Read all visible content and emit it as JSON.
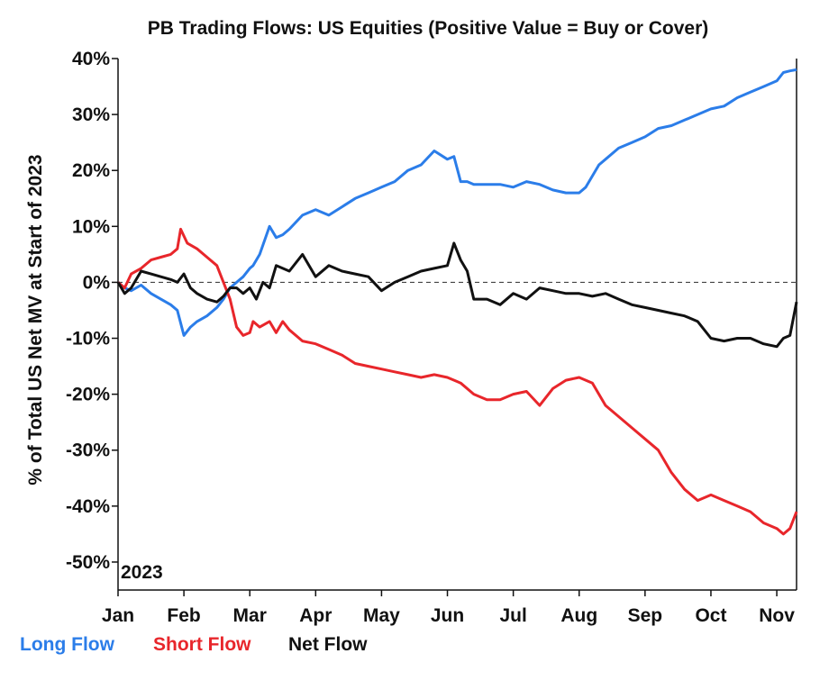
{
  "chart_data": {
    "type": "line",
    "title": "PB Trading Flows: US Equities (Positive Value = Buy or Cover)",
    "ylabel": "% of Total US Net MV at Start of 2023",
    "xlabel": "",
    "ylim": [
      -55,
      40
    ],
    "xlim": [
      0,
      10.3
    ],
    "yticks": [
      40,
      30,
      20,
      10,
      0,
      -10,
      -20,
      -30,
      -40,
      -50
    ],
    "ytick_labels": [
      "40%",
      "30%",
      "20%",
      "10%",
      "0%",
      "-10%",
      "-20%",
      "-30%",
      "-40%",
      "-50%"
    ],
    "xtick_labels": [
      "Jan",
      "Feb",
      "Mar",
      "Apr",
      "May",
      "Jun",
      "Jul",
      "Aug",
      "Sep",
      "Oct",
      "Nov"
    ],
    "annotation": "2023",
    "reference_line": 0,
    "legend_position": "bottom-left",
    "series": [
      {
        "name": "Long Flow",
        "color": "#2b7de9",
        "x": [
          0,
          0.1,
          0.2,
          0.35,
          0.5,
          0.65,
          0.8,
          0.9,
          1.0,
          1.1,
          1.2,
          1.35,
          1.5,
          1.6,
          1.7,
          1.8,
          1.9,
          2.0,
          2.05,
          2.15,
          2.3,
          2.4,
          2.5,
          2.6,
          2.8,
          3.0,
          3.2,
          3.4,
          3.6,
          3.8,
          4.0,
          4.2,
          4.4,
          4.6,
          4.8,
          5.0,
          5.1,
          5.2,
          5.3,
          5.4,
          5.5,
          5.65,
          5.8,
          6.0,
          6.2,
          6.4,
          6.6,
          6.8,
          7.0,
          7.1,
          7.2,
          7.3,
          7.4,
          7.6,
          7.8,
          8.0,
          8.2,
          8.4,
          8.6,
          8.8,
          9.0,
          9.2,
          9.4,
          9.6,
          9.8,
          10.0,
          10.1,
          10.2,
          10.3
        ],
        "values": [
          0,
          -1,
          -1.5,
          -0.5,
          -2,
          -3,
          -4,
          -5,
          -9.5,
          -8,
          -7,
          -6,
          -4.5,
          -3,
          -1,
          0,
          1,
          2.5,
          3,
          5,
          10,
          8,
          8.5,
          9.5,
          12,
          13,
          12,
          13.5,
          15,
          16,
          17,
          18,
          20,
          21,
          23.5,
          22,
          22.5,
          18,
          18,
          17.5,
          17.5,
          17.5,
          17.5,
          17,
          18,
          17.5,
          16.5,
          16,
          16,
          17,
          19,
          21,
          22,
          24,
          25,
          26,
          27.5,
          28,
          29,
          30,
          31,
          31.5,
          33,
          34,
          35,
          36,
          37.5,
          37.8,
          38
        ]
      },
      {
        "name": "Short Flow",
        "color": "#e8262b",
        "x": [
          0,
          0.1,
          0.2,
          0.35,
          0.5,
          0.65,
          0.8,
          0.9,
          0.95,
          1.05,
          1.2,
          1.35,
          1.5,
          1.6,
          1.7,
          1.8,
          1.9,
          2.0,
          2.05,
          2.15,
          2.3,
          2.4,
          2.5,
          2.6,
          2.8,
          3.0,
          3.2,
          3.4,
          3.6,
          3.8,
          4.0,
          4.2,
          4.4,
          4.6,
          4.8,
          5.0,
          5.2,
          5.4,
          5.6,
          5.8,
          6.0,
          6.2,
          6.4,
          6.6,
          6.8,
          7.0,
          7.2,
          7.4,
          7.6,
          7.8,
          8.0,
          8.2,
          8.4,
          8.6,
          8.8,
          9.0,
          9.2,
          9.4,
          9.6,
          9.8,
          10.0,
          10.1,
          10.2,
          10.3
        ],
        "values": [
          0,
          -1,
          1.5,
          2.5,
          4,
          4.5,
          5,
          6,
          9.5,
          7,
          6,
          4.5,
          3,
          0,
          -3,
          -8,
          -9.5,
          -9,
          -7,
          -8,
          -7,
          -9,
          -7,
          -8.5,
          -10.5,
          -11,
          -12,
          -13,
          -14.5,
          -15,
          -15.5,
          -16,
          -16.5,
          -17,
          -16.5,
          -17,
          -18,
          -20,
          -21,
          -21,
          -20,
          -19.5,
          -22,
          -19,
          -17.5,
          -17,
          -18,
          -22,
          -24,
          -26,
          -28,
          -30,
          -34,
          -37,
          -39,
          -38,
          -39,
          -40,
          -41,
          -43,
          -44,
          -45,
          -44,
          -41
        ]
      },
      {
        "name": "Net Flow",
        "color": "#111111",
        "x": [
          0,
          0.1,
          0.2,
          0.35,
          0.5,
          0.65,
          0.8,
          0.9,
          1.0,
          1.1,
          1.2,
          1.35,
          1.5,
          1.6,
          1.7,
          1.8,
          1.9,
          2.0,
          2.1,
          2.2,
          2.3,
          2.4,
          2.5,
          2.6,
          2.8,
          3.0,
          3.2,
          3.4,
          3.6,
          3.8,
          4.0,
          4.2,
          4.4,
          4.6,
          4.8,
          5.0,
          5.1,
          5.2,
          5.3,
          5.4,
          5.6,
          5.8,
          6.0,
          6.2,
          6.4,
          6.6,
          6.8,
          7.0,
          7.2,
          7.4,
          7.6,
          7.8,
          8.0,
          8.2,
          8.4,
          8.6,
          8.8,
          9.0,
          9.2,
          9.4,
          9.6,
          9.8,
          10.0,
          10.1,
          10.2,
          10.3
        ],
        "values": [
          0,
          -2,
          -1,
          2,
          1.5,
          1,
          0.5,
          0,
          1.5,
          -1,
          -2,
          -3,
          -3.5,
          -2.5,
          -1,
          -1,
          -2,
          -1,
          -3,
          0,
          -1,
          3,
          2.5,
          2,
          5,
          1,
          3,
          2,
          1.5,
          1,
          -1.5,
          0,
          1,
          2,
          2.5,
          3,
          7,
          4,
          2,
          -3,
          -3,
          -4,
          -2,
          -3,
          -1,
          -1.5,
          -2,
          -2,
          -2.5,
          -2,
          -3,
          -4,
          -4.5,
          -5,
          -5.5,
          -6,
          -7,
          -10,
          -10.5,
          -10,
          -10,
          -11,
          -11.5,
          -10,
          -9.5,
          -3.5
        ]
      }
    ]
  }
}
